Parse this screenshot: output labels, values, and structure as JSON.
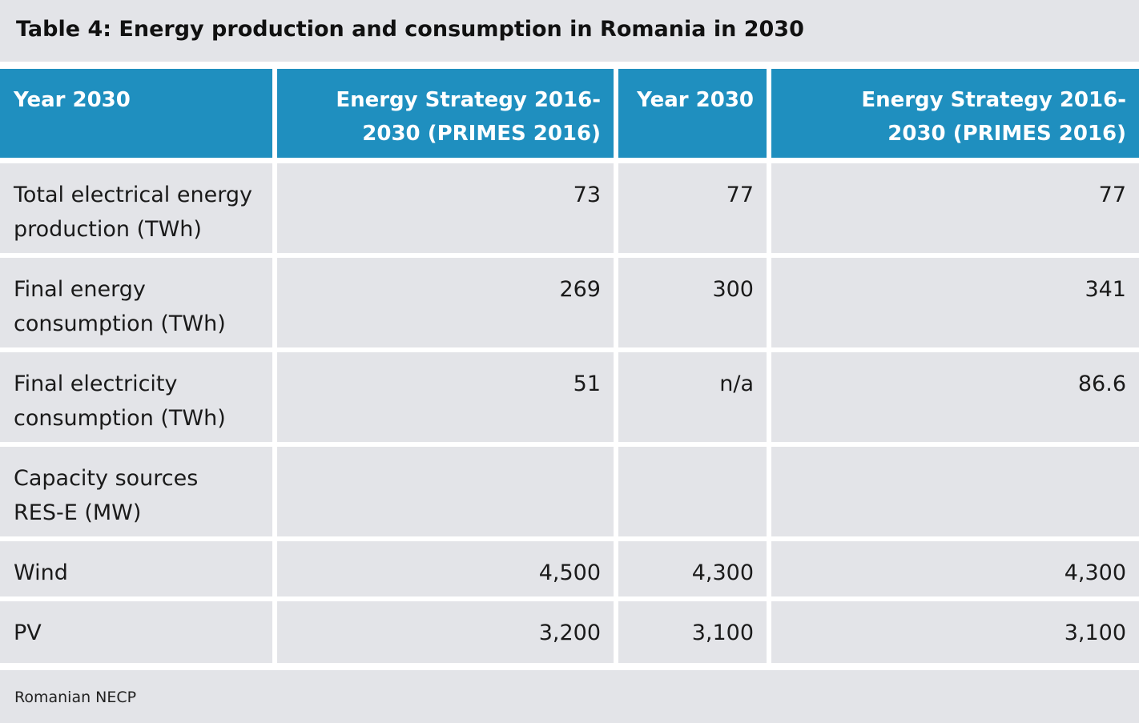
{
  "title": "Table 4: Energy production and consumption in Romania in 2030",
  "colors": {
    "header_bg": "#1f8fbf",
    "cell_bg": "#e3e4e8",
    "header_text": "#ffffff"
  },
  "table": {
    "headers": [
      "Year 2030",
      "Energy Strategy 2016-2030 (PRIMES 2016)",
      "Year 2030",
      "Energy Strategy 2016-2030 (PRIMES 2016)"
    ],
    "rows": [
      [
        "Total electrical energy production (TWh)",
        "73",
        "77",
        "77"
      ],
      [
        "Final energy consumption (TWh)",
        "269",
        "300",
        "341"
      ],
      [
        "Final electricity consumption (TWh)",
        "51",
        "n/a",
        "86.6"
      ],
      [
        "Capacity sources RES-E (MW)",
        "",
        "",
        ""
      ],
      [
        "Wind",
        "4,500",
        "4,300",
        "4,300"
      ],
      [
        "PV",
        "3,200",
        "3,100",
        "3,100"
      ]
    ]
  },
  "source": "Romanian NECP"
}
